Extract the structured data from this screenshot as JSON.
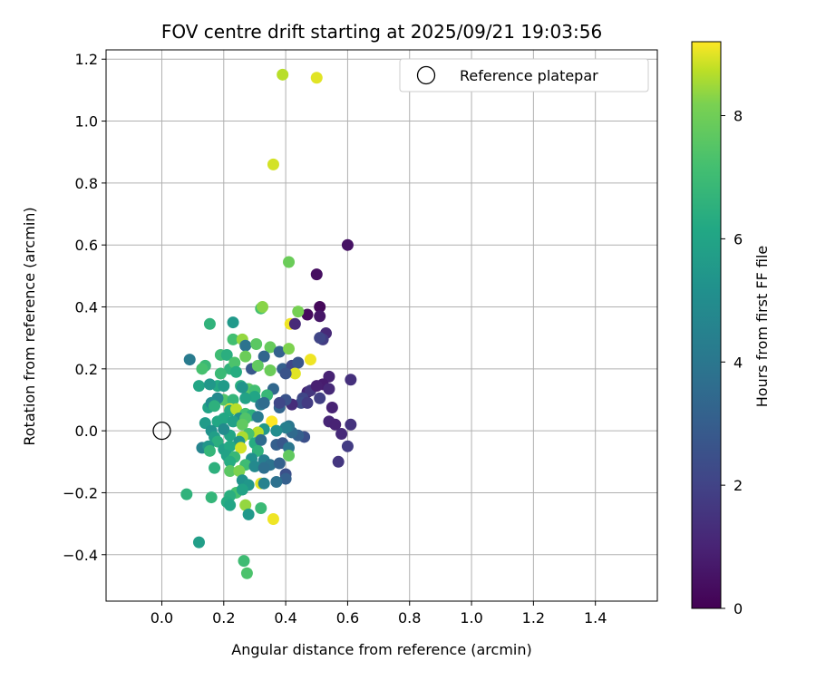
{
  "chart_data": {
    "type": "scatter",
    "title": "FOV centre drift starting at 2025/09/21 19:03:56",
    "xlabel": "Angular distance from reference (arcmin)",
    "ylabel": "Rotation from reference (arcmin)",
    "xlim": [
      -0.18,
      1.6
    ],
    "ylim": [
      -0.55,
      1.23
    ],
    "xticks": [
      0.0,
      0.2,
      0.4,
      0.6,
      0.8,
      1.0,
      1.2,
      1.4
    ],
    "xtick_labels": [
      "0.0",
      "0.2",
      "0.4",
      "0.6",
      "0.8",
      "1.0",
      "1.2",
      "1.4"
    ],
    "yticks": [
      -0.4,
      -0.2,
      0.0,
      0.2,
      0.4,
      0.6,
      0.8,
      1.0,
      1.2
    ],
    "ytick_labels": [
      "−0.4",
      "−0.2",
      "0.0",
      "0.2",
      "0.4",
      "0.6",
      "0.8",
      "1.0",
      "1.2"
    ],
    "grid": true,
    "legend": {
      "position": "top-right",
      "label": "Reference platepar"
    },
    "reference_point": {
      "x": 0.0,
      "y": 0.0
    },
    "colorbar": {
      "label": "Hours from first FF file",
      "colormap": "viridis",
      "min": 0,
      "max": 9.2,
      "ticks": [
        0,
        2,
        4,
        6,
        8
      ],
      "tick_labels": [
        "0",
        "2",
        "4",
        "6",
        "8"
      ]
    },
    "points": [
      {
        "x": 0.39,
        "y": 1.15,
        "h": 8.7
      },
      {
        "x": 0.5,
        "y": 1.14,
        "h": 9.0
      },
      {
        "x": 0.36,
        "y": 0.86,
        "h": 8.9
      },
      {
        "x": 0.6,
        "y": 0.6,
        "h": 0.5
      },
      {
        "x": 0.41,
        "y": 0.545,
        "h": 7.9
      },
      {
        "x": 0.5,
        "y": 0.505,
        "h": 0.4
      },
      {
        "x": 0.51,
        "y": 0.4,
        "h": 0.2
      },
      {
        "x": 0.51,
        "y": 0.37,
        "h": 0.6
      },
      {
        "x": 0.47,
        "y": 0.375,
        "h": 0.3
      },
      {
        "x": 0.53,
        "y": 0.315,
        "h": 1.2
      },
      {
        "x": 0.52,
        "y": 0.295,
        "h": 1.8
      },
      {
        "x": 0.51,
        "y": 0.3,
        "h": 2.1
      },
      {
        "x": 0.44,
        "y": 0.385,
        "h": 8.1
      },
      {
        "x": 0.415,
        "y": 0.345,
        "h": 9.1
      },
      {
        "x": 0.43,
        "y": 0.345,
        "h": 1.2
      },
      {
        "x": 0.32,
        "y": 0.395,
        "h": 7.2
      },
      {
        "x": 0.325,
        "y": 0.4,
        "h": 8.3
      },
      {
        "x": 0.155,
        "y": 0.345,
        "h": 6.6
      },
      {
        "x": 0.23,
        "y": 0.35,
        "h": 5.5
      },
      {
        "x": 0.23,
        "y": 0.295,
        "h": 7.1
      },
      {
        "x": 0.26,
        "y": 0.295,
        "h": 8.4
      },
      {
        "x": 0.27,
        "y": 0.275,
        "h": 3.9
      },
      {
        "x": 0.305,
        "y": 0.28,
        "h": 7.6
      },
      {
        "x": 0.35,
        "y": 0.27,
        "h": 7.8
      },
      {
        "x": 0.38,
        "y": 0.255,
        "h": 3.2
      },
      {
        "x": 0.41,
        "y": 0.265,
        "h": 8.2
      },
      {
        "x": 0.19,
        "y": 0.245,
        "h": 7.0
      },
      {
        "x": 0.21,
        "y": 0.245,
        "h": 6.4
      },
      {
        "x": 0.27,
        "y": 0.24,
        "h": 7.9
      },
      {
        "x": 0.33,
        "y": 0.24,
        "h": 3.3
      },
      {
        "x": 0.09,
        "y": 0.23,
        "h": 4.2
      },
      {
        "x": 0.48,
        "y": 0.23,
        "h": 9.1
      },
      {
        "x": 0.14,
        "y": 0.21,
        "h": 6.9
      },
      {
        "x": 0.22,
        "y": 0.2,
        "h": 6.6
      },
      {
        "x": 0.235,
        "y": 0.22,
        "h": 7.3
      },
      {
        "x": 0.13,
        "y": 0.2,
        "h": 7.2
      },
      {
        "x": 0.29,
        "y": 0.2,
        "h": 2.8
      },
      {
        "x": 0.31,
        "y": 0.21,
        "h": 7.7
      },
      {
        "x": 0.35,
        "y": 0.195,
        "h": 7.9
      },
      {
        "x": 0.39,
        "y": 0.2,
        "h": 3.1
      },
      {
        "x": 0.42,
        "y": 0.21,
        "h": 2.2
      },
      {
        "x": 0.44,
        "y": 0.22,
        "h": 2.7
      },
      {
        "x": 0.43,
        "y": 0.185,
        "h": 9.0
      },
      {
        "x": 0.4,
        "y": 0.185,
        "h": 2.6
      },
      {
        "x": 0.19,
        "y": 0.185,
        "h": 6.9
      },
      {
        "x": 0.24,
        "y": 0.19,
        "h": 6.3
      },
      {
        "x": 0.54,
        "y": 0.175,
        "h": 1.0
      },
      {
        "x": 0.61,
        "y": 0.165,
        "h": 1.4
      },
      {
        "x": 0.18,
        "y": 0.145,
        "h": 6.2
      },
      {
        "x": 0.2,
        "y": 0.145,
        "h": 5.6
      },
      {
        "x": 0.12,
        "y": 0.145,
        "h": 6.0
      },
      {
        "x": 0.155,
        "y": 0.15,
        "h": 5.4
      },
      {
        "x": 0.255,
        "y": 0.145,
        "h": 6.4
      },
      {
        "x": 0.28,
        "y": 0.135,
        "h": 7.6
      },
      {
        "x": 0.3,
        "y": 0.13,
        "h": 7.1
      },
      {
        "x": 0.36,
        "y": 0.135,
        "h": 3.4
      },
      {
        "x": 0.34,
        "y": 0.115,
        "h": 6.8
      },
      {
        "x": 0.3,
        "y": 0.11,
        "h": 6.0
      },
      {
        "x": 0.27,
        "y": 0.105,
        "h": 5.9
      },
      {
        "x": 0.2,
        "y": 0.1,
        "h": 7.4
      },
      {
        "x": 0.18,
        "y": 0.105,
        "h": 4.8
      },
      {
        "x": 0.23,
        "y": 0.1,
        "h": 6.7
      },
      {
        "x": 0.26,
        "y": 0.14,
        "h": 5.3
      },
      {
        "x": 0.47,
        "y": 0.125,
        "h": 1.1
      },
      {
        "x": 0.48,
        "y": 0.13,
        "h": 1.6
      },
      {
        "x": 0.52,
        "y": 0.15,
        "h": 0.8
      },
      {
        "x": 0.54,
        "y": 0.135,
        "h": 1.2
      },
      {
        "x": 0.5,
        "y": 0.145,
        "h": 0.9
      },
      {
        "x": 0.51,
        "y": 0.105,
        "h": 1.9
      },
      {
        "x": 0.455,
        "y": 0.105,
        "h": 2.1
      },
      {
        "x": 0.45,
        "y": 0.09,
        "h": 2.4
      },
      {
        "x": 0.47,
        "y": 0.09,
        "h": 1.8
      },
      {
        "x": 0.42,
        "y": 0.085,
        "h": 1.3
      },
      {
        "x": 0.4,
        "y": 0.1,
        "h": 2.6
      },
      {
        "x": 0.38,
        "y": 0.075,
        "h": 3.3
      },
      {
        "x": 0.38,
        "y": 0.09,
        "h": 2.2
      },
      {
        "x": 0.32,
        "y": 0.085,
        "h": 4.1
      },
      {
        "x": 0.33,
        "y": 0.09,
        "h": 3.6
      },
      {
        "x": 0.15,
        "y": 0.075,
        "h": 5.9
      },
      {
        "x": 0.16,
        "y": 0.09,
        "h": 5.0
      },
      {
        "x": 0.17,
        "y": 0.08,
        "h": 6.5
      },
      {
        "x": 0.22,
        "y": 0.07,
        "h": 9.1
      },
      {
        "x": 0.22,
        "y": 0.065,
        "h": 6.2
      },
      {
        "x": 0.24,
        "y": 0.07,
        "h": 8.7
      },
      {
        "x": 0.55,
        "y": 0.075,
        "h": 1.0
      },
      {
        "x": 0.27,
        "y": 0.055,
        "h": 7.1
      },
      {
        "x": 0.29,
        "y": 0.05,
        "h": 6.5
      },
      {
        "x": 0.25,
        "y": 0.04,
        "h": 5.1
      },
      {
        "x": 0.2,
        "y": 0.04,
        "h": 6.1
      },
      {
        "x": 0.23,
        "y": 0.03,
        "h": 5.8
      },
      {
        "x": 0.27,
        "y": 0.04,
        "h": 7.4
      },
      {
        "x": 0.31,
        "y": 0.045,
        "h": 4.2
      },
      {
        "x": 0.355,
        "y": 0.03,
        "h": 9.2
      },
      {
        "x": 0.26,
        "y": 0.02,
        "h": 7.7
      },
      {
        "x": 0.14,
        "y": 0.025,
        "h": 5.6
      },
      {
        "x": 0.18,
        "y": 0.03,
        "h": 6.1
      },
      {
        "x": 0.54,
        "y": 0.03,
        "h": 1.1
      },
      {
        "x": 0.56,
        "y": 0.02,
        "h": 1.0
      },
      {
        "x": 0.61,
        "y": 0.02,
        "h": 1.5
      },
      {
        "x": 0.58,
        "y": -0.01,
        "h": 1.2
      },
      {
        "x": 0.6,
        "y": -0.05,
        "h": 1.8
      },
      {
        "x": 0.46,
        "y": -0.02,
        "h": 2.5
      },
      {
        "x": 0.44,
        "y": -0.015,
        "h": 3.1
      },
      {
        "x": 0.42,
        "y": -0.005,
        "h": 3.5
      },
      {
        "x": 0.41,
        "y": 0.015,
        "h": 4.0
      },
      {
        "x": 0.4,
        "y": 0.01,
        "h": 4.4
      },
      {
        "x": 0.37,
        "y": 0.0,
        "h": 5.0
      },
      {
        "x": 0.33,
        "y": 0.005,
        "h": 5.5
      },
      {
        "x": 0.31,
        "y": -0.005,
        "h": 8.7
      },
      {
        "x": 0.28,
        "y": -0.01,
        "h": 7.2
      },
      {
        "x": 0.26,
        "y": -0.02,
        "h": 8.6
      },
      {
        "x": 0.22,
        "y": -0.015,
        "h": 6.0
      },
      {
        "x": 0.2,
        "y": 0.005,
        "h": 4.9
      },
      {
        "x": 0.16,
        "y": 0.0,
        "h": 5.2
      },
      {
        "x": 0.17,
        "y": -0.02,
        "h": 5.7
      },
      {
        "x": 0.18,
        "y": -0.035,
        "h": 6.4
      },
      {
        "x": 0.25,
        "y": -0.035,
        "h": 5.3
      },
      {
        "x": 0.3,
        "y": -0.04,
        "h": 6.3
      },
      {
        "x": 0.32,
        "y": -0.03,
        "h": 3.6
      },
      {
        "x": 0.37,
        "y": -0.045,
        "h": 3.1
      },
      {
        "x": 0.39,
        "y": -0.04,
        "h": 2.8
      },
      {
        "x": 0.41,
        "y": -0.055,
        "h": 4.0
      },
      {
        "x": 0.13,
        "y": -0.055,
        "h": 4.6
      },
      {
        "x": 0.15,
        "y": -0.05,
        "h": 5.4
      },
      {
        "x": 0.155,
        "y": -0.065,
        "h": 6.7
      },
      {
        "x": 0.2,
        "y": -0.06,
        "h": 5.8
      },
      {
        "x": 0.22,
        "y": -0.05,
        "h": 6.2
      },
      {
        "x": 0.255,
        "y": -0.055,
        "h": 8.9
      },
      {
        "x": 0.31,
        "y": -0.065,
        "h": 6.6
      },
      {
        "x": 0.21,
        "y": -0.08,
        "h": 5.9
      },
      {
        "x": 0.235,
        "y": -0.085,
        "h": 6.8
      },
      {
        "x": 0.29,
        "y": -0.09,
        "h": 5.1
      },
      {
        "x": 0.33,
        "y": -0.095,
        "h": 4.4
      },
      {
        "x": 0.35,
        "y": -0.11,
        "h": 3.9
      },
      {
        "x": 0.38,
        "y": -0.105,
        "h": 3.2
      },
      {
        "x": 0.41,
        "y": -0.08,
        "h": 7.7
      },
      {
        "x": 0.57,
        "y": -0.1,
        "h": 1.6
      },
      {
        "x": 0.22,
        "y": -0.1,
        "h": 6.3
      },
      {
        "x": 0.27,
        "y": -0.11,
        "h": 7.0
      },
      {
        "x": 0.3,
        "y": -0.115,
        "h": 4.8
      },
      {
        "x": 0.33,
        "y": -0.12,
        "h": 3.7
      },
      {
        "x": 0.17,
        "y": -0.12,
        "h": 6.5
      },
      {
        "x": 0.22,
        "y": -0.13,
        "h": 7.6
      },
      {
        "x": 0.25,
        "y": -0.13,
        "h": 8.2
      },
      {
        "x": 0.26,
        "y": -0.16,
        "h": 5.2
      },
      {
        "x": 0.32,
        "y": -0.17,
        "h": 9.0
      },
      {
        "x": 0.4,
        "y": -0.14,
        "h": 2.5
      },
      {
        "x": 0.4,
        "y": -0.155,
        "h": 3.1
      },
      {
        "x": 0.37,
        "y": -0.165,
        "h": 3.8
      },
      {
        "x": 0.33,
        "y": -0.17,
        "h": 4.5
      },
      {
        "x": 0.28,
        "y": -0.175,
        "h": 5.4
      },
      {
        "x": 0.24,
        "y": -0.2,
        "h": 7.2
      },
      {
        "x": 0.26,
        "y": -0.19,
        "h": 5.9
      },
      {
        "x": 0.22,
        "y": -0.21,
        "h": 6.4
      },
      {
        "x": 0.08,
        "y": -0.205,
        "h": 6.6
      },
      {
        "x": 0.16,
        "y": -0.215,
        "h": 6.7
      },
      {
        "x": 0.21,
        "y": -0.23,
        "h": 6.3
      },
      {
        "x": 0.22,
        "y": -0.24,
        "h": 6.0
      },
      {
        "x": 0.27,
        "y": -0.24,
        "h": 8.4
      },
      {
        "x": 0.32,
        "y": -0.25,
        "h": 6.9
      },
      {
        "x": 0.28,
        "y": -0.27,
        "h": 5.5
      },
      {
        "x": 0.36,
        "y": -0.285,
        "h": 9.1
      },
      {
        "x": 0.12,
        "y": -0.36,
        "h": 5.7
      },
      {
        "x": 0.265,
        "y": -0.42,
        "h": 7.0
      },
      {
        "x": 0.275,
        "y": -0.46,
        "h": 7.3
      }
    ]
  }
}
